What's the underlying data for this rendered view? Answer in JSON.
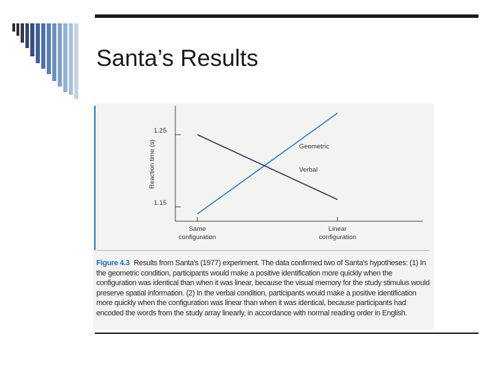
{
  "slide": {
    "title": "Santa’s Results"
  },
  "figure": {
    "label": "Figure 4.3",
    "caption": "Results from Santa's (1977) experiment. The data confirmed two of Santa's hypotheses: (1) In the geometric condition, participants would make a positive identification more quickly when the configuration was identical than when it was linear, because the visual memory for the study stimulus would preserve spatial information. (2) In the verbal condition, participants would make a positive identification more quickly when the configuration was linear than when it was identical, because participants had encoded the words from the study array linearly, in accordance with normal reading order in English."
  },
  "chart_data": {
    "type": "line",
    "title": "",
    "xlabel": "",
    "ylabel": "Reaction time (s)",
    "categories": [
      "Same configuration",
      "Linear configuration"
    ],
    "y_ticks": [
      1.15,
      1.25
    ],
    "ylim": [
      1.13,
      1.29
    ],
    "grid": false,
    "legend": "inline labels at right end of lines",
    "series": [
      {
        "name": "Geometric",
        "values": [
          1.14,
          1.28
        ],
        "color": "#2a7fc0"
      },
      {
        "name": "Verbal",
        "values": [
          1.25,
          1.16
        ],
        "color": "#2b3a55"
      }
    ]
  }
}
